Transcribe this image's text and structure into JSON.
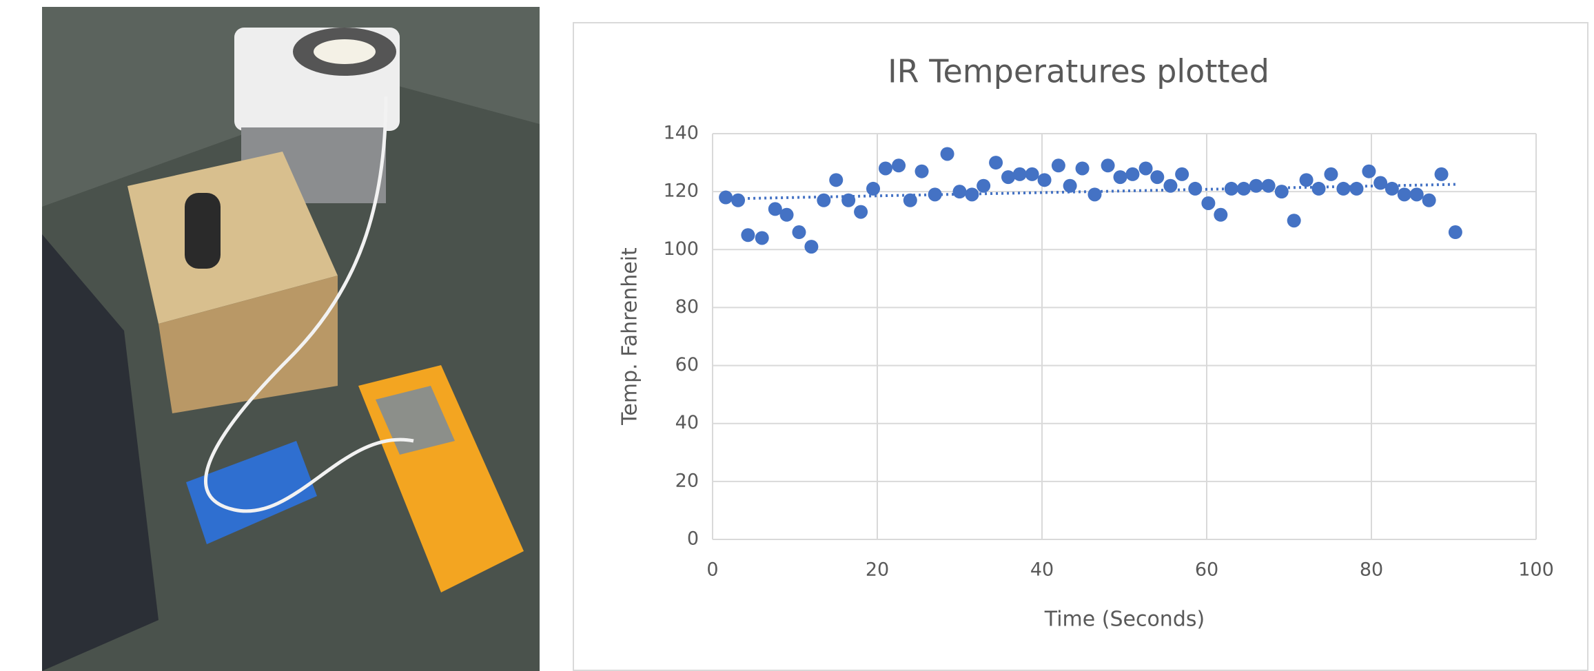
{
  "chart_data": {
    "type": "scatter",
    "title": "IR Temperatures plotted",
    "x_label": "Time (Seconds)",
    "y_label": "Temp.  Fahrenheit",
    "x": [
      1.6,
      3.1,
      4.3,
      6,
      7.6,
      9,
      10.5,
      12,
      13.5,
      15,
      16.5,
      18,
      19.5,
      21,
      22.6,
      24,
      25.4,
      27,
      28.5,
      30,
      31.5,
      32.9,
      34.4,
      35.9,
      37.3,
      38.8,
      40.3,
      42,
      43.4,
      44.9,
      46.4,
      48,
      49.5,
      51,
      52.6,
      54,
      55.6,
      57,
      58.6,
      60.2,
      61.7,
      63,
      64.5,
      66,
      67.5,
      69.1,
      70.6,
      72.1,
      73.6,
      75.1,
      76.6,
      78.2,
      79.7,
      81.1,
      82.5,
      84,
      85.5,
      87,
      88.5,
      90.2
    ],
    "values": [
      118,
      117,
      105,
      104,
      114,
      112,
      106,
      101,
      117,
      124,
      117,
      113,
      121,
      128,
      129,
      117,
      127,
      119,
      133,
      120,
      119,
      122,
      130,
      125,
      126,
      126,
      124,
      129,
      122,
      128,
      119,
      129,
      125,
      126,
      128,
      125,
      122,
      126,
      121,
      116,
      112,
      121,
      121,
      122,
      122,
      120,
      110,
      124,
      121,
      126,
      121,
      121,
      127,
      123,
      121,
      119,
      119,
      117,
      126,
      106
    ],
    "color": "#4472c4",
    "trendline": {
      "x": [
        1.6,
        90.2
      ],
      "values": [
        117.5,
        122.5
      ],
      "style": "dotted"
    },
    "xlim": [
      0,
      100
    ],
    "xticks": [
      0,
      20,
      40,
      60,
      80,
      100
    ],
    "ylim": [
      0,
      140
    ],
    "yticks": [
      0,
      20,
      40,
      60,
      80,
      100,
      120,
      140
    ],
    "grid": true
  }
}
